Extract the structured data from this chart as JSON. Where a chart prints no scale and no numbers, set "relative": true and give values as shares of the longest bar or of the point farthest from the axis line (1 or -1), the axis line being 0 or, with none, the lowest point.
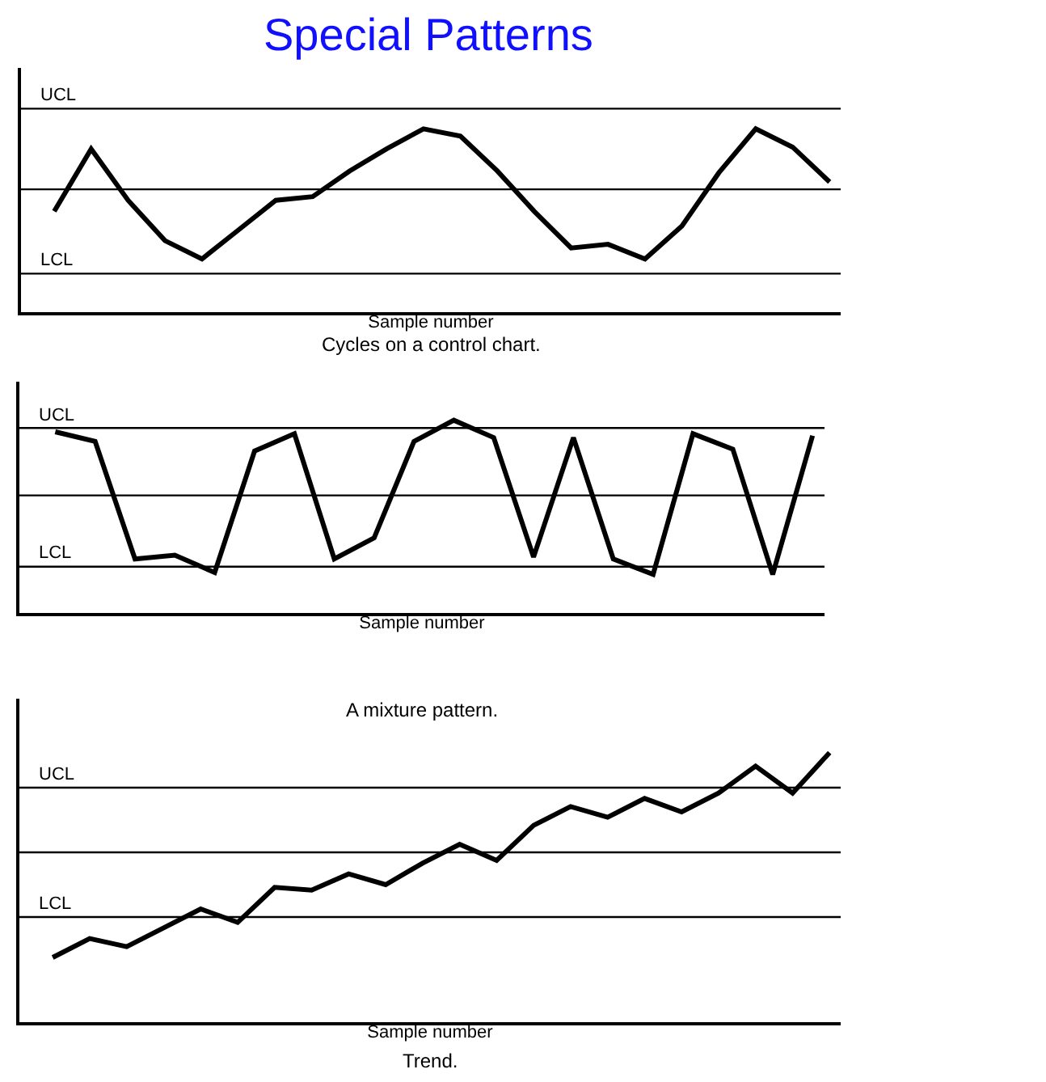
{
  "chart_data": [
    {
      "type": "line",
      "title": "Special Patterns",
      "xlabel": "Sample number",
      "annotations": [
        "Cycles on a control chart."
      ],
      "relative": true,
      "marker": "none",
      "line_style": "solid",
      "categories": [
        null,
        null,
        null,
        null,
        null,
        null,
        null,
        null,
        null,
        null,
        null,
        null,
        null,
        null,
        null,
        null,
        null,
        null,
        null,
        null,
        null,
        null
      ],
      "series": [
        {
          "color": "#000000",
          "values": [
            0.55,
            0.89,
            0.61,
            0.39,
            0.29,
            0.45,
            0.61,
            0.63,
            0.77,
            0.89,
            1,
            0.96,
            0.77,
            0.55,
            0.35,
            0.37,
            0.29,
            0.47,
            0.76,
            1,
            0.9,
            0.71
          ]
        }
      ],
      "ref_lines": [
        {
          "axis": "y",
          "value": 1.11,
          "label": "UCL"
        },
        {
          "axis": "y",
          "value": 0.67
        },
        {
          "axis": "y",
          "value": 0.21,
          "label": "LCL"
        }
      ]
    },
    {
      "type": "line",
      "xlabel": "Sample number",
      "annotations": [
        "A mixture pattern."
      ],
      "relative": true,
      "marker": "none",
      "line_style": "solid",
      "categories": [
        null,
        null,
        null,
        null,
        null,
        null,
        null,
        null,
        null,
        null,
        null,
        null,
        null,
        null,
        null,
        null,
        null,
        null,
        null,
        null
      ],
      "series": [
        {
          "color": "#000000",
          "values": [
            0.94,
            0.89,
            0.28,
            0.3,
            0.21,
            0.84,
            0.93,
            0.28,
            0.39,
            0.89,
            1,
            0.91,
            0.29,
            0.91,
            0.28,
            0.2,
            0.93,
            0.85,
            0.2,
            0.92
          ]
        }
      ],
      "ref_lines": [
        {
          "axis": "y",
          "value": 0.96,
          "label": "UCL"
        },
        {
          "axis": "y",
          "value": 0.61
        },
        {
          "axis": "y",
          "value": 0.24,
          "label": "LCL"
        }
      ]
    },
    {
      "type": "line",
      "xlabel": "Sample number",
      "annotations": [
        "Trend."
      ],
      "relative": true,
      "marker": "none",
      "line_style": "solid",
      "categories": [
        null,
        null,
        null,
        null,
        null,
        null,
        null,
        null,
        null,
        null,
        null,
        null,
        null,
        null,
        null,
        null,
        null,
        null,
        null,
        null,
        null,
        null
      ],
      "series": [
        {
          "color": "#000000",
          "values": [
            0.24,
            0.31,
            0.28,
            0.35,
            0.42,
            0.37,
            0.5,
            0.49,
            0.55,
            0.51,
            0.59,
            0.66,
            0.6,
            0.73,
            0.8,
            0.76,
            0.83,
            0.78,
            0.85,
            0.95,
            0.85,
            1
          ]
        }
      ],
      "ref_lines": [
        {
          "axis": "y",
          "value": 0.87,
          "label": "UCL"
        },
        {
          "axis": "y",
          "value": 0.63
        },
        {
          "axis": "y",
          "value": 0.39,
          "label": "LCL"
        }
      ]
    }
  ]
}
